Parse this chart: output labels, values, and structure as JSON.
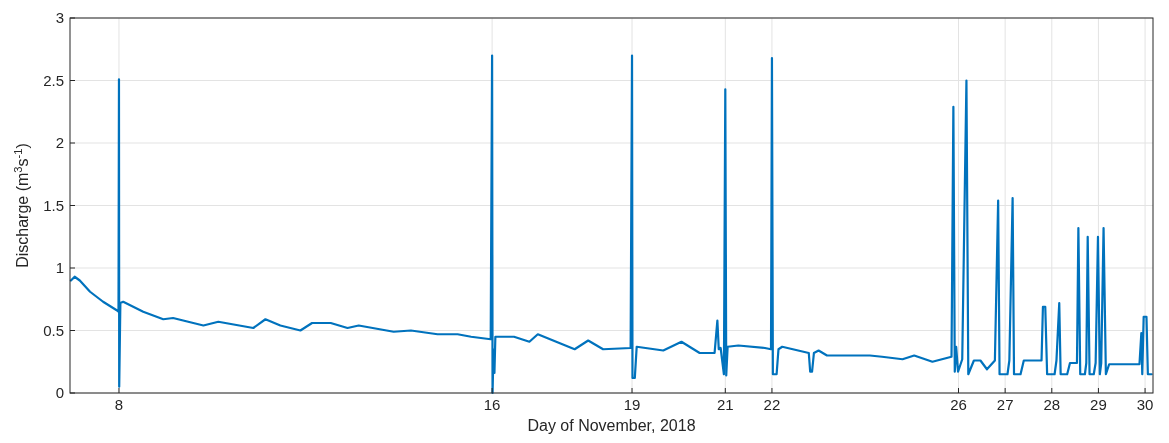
{
  "chart_data": {
    "type": "line",
    "xlabel": "Day of November, 2018",
    "ylabel": "Discharge (m$^{3}$s$^{-1}$)",
    "xlim": [
      6.95,
      30.17
    ],
    "xticks": [
      8,
      16,
      19,
      21,
      22,
      26,
      27,
      28,
      29,
      30
    ],
    "ylim": [
      0,
      3
    ],
    "yticks": [
      0,
      0.5,
      1,
      1.5,
      2,
      2.5,
      3
    ],
    "grid": true,
    "line_style": "solid",
    "marker": "none",
    "series": [
      {
        "color": "#0072bd",
        "x": [
          6.97,
          7.05,
          7.16,
          7.38,
          7.66,
          7.96,
          7.99,
          8.0,
          8.005,
          8.03,
          8.09,
          8.52,
          8.95,
          9.16,
          9.81,
          10.13,
          10.88,
          11.14,
          11.46,
          11.89,
          12.14,
          12.54,
          12.9,
          13.14,
          13.89,
          14.26,
          14.83,
          15.26,
          15.55,
          15.97,
          16.0,
          16.01,
          16.03,
          16.05,
          16.07,
          16.47,
          16.8,
          16.98,
          17.77,
          18.06,
          18.38,
          18.97,
          19.0,
          19.01,
          19.06,
          19.1,
          19.67,
          20.06,
          20.45,
          20.77,
          20.83,
          20.86,
          20.9,
          20.97,
          21.0,
          21.02,
          21.05,
          21.28,
          21.85,
          21.98,
          22.0,
          22.02,
          22.1,
          22.14,
          22.22,
          22.79,
          22.82,
          22.86,
          22.9,
          23.0,
          23.18,
          24.1,
          24.36,
          24.8,
          25.05,
          25.44,
          25.85,
          25.89,
          25.92,
          25.95,
          25.99,
          26.08,
          26.17,
          26.21,
          26.33,
          26.47,
          26.61,
          26.78,
          26.85,
          26.88,
          27.05,
          27.09,
          27.16,
          27.19,
          27.33,
          27.4,
          27.78,
          27.81,
          27.86,
          27.9,
          28.06,
          28.1,
          28.16,
          28.19,
          28.33,
          28.39,
          28.54,
          28.57,
          28.61,
          28.71,
          28.74,
          28.77,
          28.81,
          28.9,
          28.94,
          28.99,
          29.03,
          29.06,
          29.11,
          29.16,
          29.23,
          29.88,
          29.92,
          29.94,
          29.97,
          30.03,
          30.06,
          30.14
        ],
        "values": [
          0.9,
          0.93,
          0.9,
          0.81,
          0.73,
          0.66,
          0.65,
          2.51,
          0.05,
          0.72,
          0.73,
          0.65,
          0.59,
          0.6,
          0.54,
          0.57,
          0.52,
          0.59,
          0.54,
          0.5,
          0.56,
          0.56,
          0.52,
          0.54,
          0.49,
          0.5,
          0.47,
          0.47,
          0.45,
          0.43,
          2.7,
          0.0,
          0.35,
          0.16,
          0.45,
          0.45,
          0.41,
          0.47,
          0.35,
          0.42,
          0.35,
          0.36,
          2.7,
          0.12,
          0.12,
          0.37,
          0.34,
          0.41,
          0.32,
          0.32,
          0.58,
          0.35,
          0.36,
          0.15,
          2.43,
          0.14,
          0.37,
          0.38,
          0.36,
          0.35,
          2.68,
          0.15,
          0.15,
          0.35,
          0.37,
          0.32,
          0.17,
          0.17,
          0.32,
          0.34,
          0.3,
          0.3,
          0.29,
          0.27,
          0.3,
          0.25,
          0.29,
          2.29,
          0.17,
          0.37,
          0.17,
          0.27,
          2.5,
          0.15,
          0.26,
          0.26,
          0.19,
          0.26,
          1.54,
          0.15,
          0.15,
          0.26,
          1.56,
          0.15,
          0.15,
          0.26,
          0.26,
          0.69,
          0.69,
          0.15,
          0.15,
          0.26,
          0.72,
          0.15,
          0.15,
          0.24,
          0.24,
          1.32,
          0.15,
          0.15,
          0.24,
          1.25,
          0.15,
          0.15,
          0.24,
          1.25,
          0.15,
          0.24,
          1.32,
          0.15,
          0.23,
          0.23,
          0.48,
          0.15,
          0.61,
          0.61,
          0.15,
          0.15
        ]
      }
    ]
  }
}
